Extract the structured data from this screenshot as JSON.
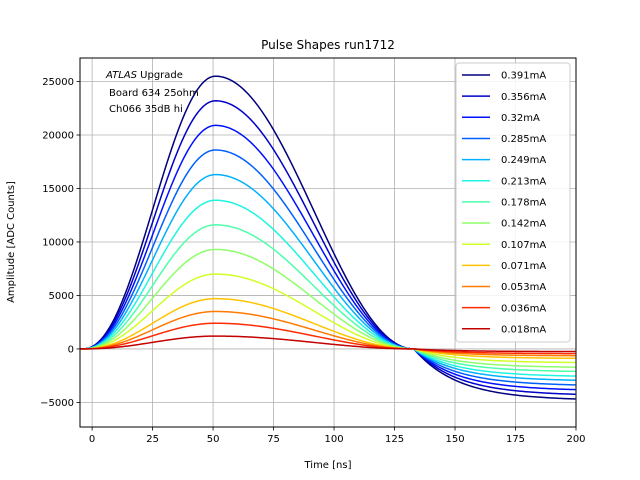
{
  "chart_data": {
    "type": "line",
    "title": "Pulse Shapes run1712",
    "xlabel": "Time [ns]",
    "ylabel": "Amplitude [ADC Counts]",
    "xlim": [
      -5,
      200
    ],
    "ylim": [
      -7300,
      27200
    ],
    "xticks": [
      0,
      25,
      50,
      75,
      100,
      125,
      150,
      175,
      200
    ],
    "yticks": [
      -5000,
      0,
      5000,
      10000,
      15000,
      20000,
      25000
    ],
    "grid": true,
    "legend_position": "upper right",
    "annotation": {
      "italic": "ATLAS",
      "rest": " Upgrade",
      "line2": "Board 634 25ohm",
      "line3": "Ch066 35dB hi"
    },
    "series": [
      {
        "name": "0.391mA",
        "color": "#00007f",
        "peak": 25500,
        "undershoot": -4800
      },
      {
        "name": "0.356mA",
        "color": "#0000c8",
        "peak": 23200,
        "undershoot": -4350
      },
      {
        "name": "0.32mA",
        "color": "#0010ff",
        "peak": 20900,
        "undershoot": -3900
      },
      {
        "name": "0.285mA",
        "color": "#0060ff",
        "peak": 18600,
        "undershoot": -3450
      },
      {
        "name": "0.249mA",
        "color": "#00b0ff",
        "peak": 16300,
        "undershoot": -3000
      },
      {
        "name": "0.213mA",
        "color": "#1ef5e1",
        "peak": 13900,
        "undershoot": -2600
      },
      {
        "name": "0.178mA",
        "color": "#4dffaa",
        "peak": 11600,
        "undershoot": -2150
      },
      {
        "name": "0.142mA",
        "color": "#8dff6a",
        "peak": 9300,
        "undershoot": -1750
      },
      {
        "name": "0.107mA",
        "color": "#d0ff26",
        "peak": 7000,
        "undershoot": -1300
      },
      {
        "name": "0.071mA",
        "color": "#ffc400",
        "peak": 4700,
        "undershoot": -900
      },
      {
        "name": "0.053mA",
        "color": "#ff7a00",
        "peak": 3500,
        "undershoot": -650
      },
      {
        "name": "0.036mA",
        "color": "#ff2b00",
        "peak": 2400,
        "undershoot": -450
      },
      {
        "name": "0.018mA",
        "color": "#c30000",
        "peak": 1200,
        "undershoot": -250
      }
    ]
  }
}
